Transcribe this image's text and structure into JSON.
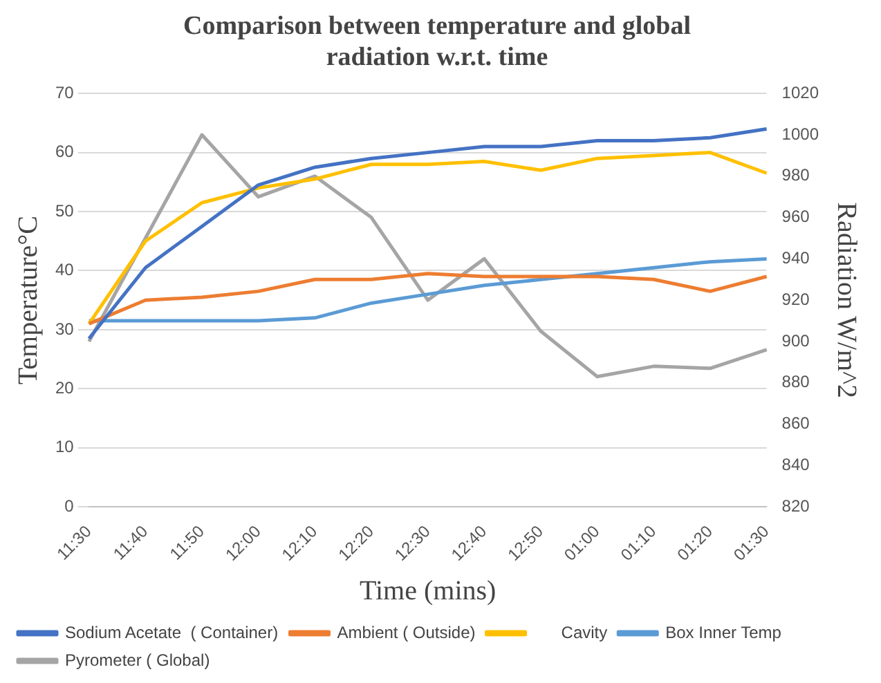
{
  "chart_data": {
    "type": "line",
    "title": "Comparison between temperature and global radiation w.r.t. time",
    "xlabel": "Time (mins)",
    "ylabel": "Temperature°C",
    "y2label": "Radiation W/m^2",
    "categories": [
      "11:30",
      "11:40",
      "11:50",
      "12:00",
      "12:10",
      "12:20",
      "12:30",
      "12:40",
      "12:50",
      "01:00",
      "01:10",
      "01:20",
      "01:30"
    ],
    "series": [
      {
        "name": "Sodium Acetate  ( Container)",
        "color": "#4472c4",
        "values": [
          28.5,
          40.5,
          47.5,
          54.5,
          57.5,
          59,
          60,
          61,
          61,
          62,
          62,
          62.5,
          64
        ]
      },
      {
        "name": "Ambient ( Outside)",
        "color": "#ed7d31",
        "values": [
          31,
          35,
          35.5,
          36.5,
          38.5,
          38.5,
          39.5,
          39,
          39,
          39,
          38.5,
          36.5,
          39
        ]
      },
      {
        "name": "      Cavity",
        "color": "#ffc000",
        "values": [
          31,
          45,
          51.5,
          54,
          55.5,
          58,
          58,
          58.5,
          57,
          59,
          59.5,
          60,
          56.5
        ]
      },
      {
        "name": "Box Inner Temp",
        "color": "#5b9bd5",
        "values": [
          31.5,
          31.5,
          31.5,
          31.5,
          32,
          34.5,
          36,
          37.5,
          38.5,
          39.5,
          40.5,
          41.5,
          42
        ]
      },
      {
        "name": "Pyrometer ( Global)",
        "color": "#a5a5a5",
        "axis": "y2",
        "values": [
          900,
          950,
          1000,
          970,
          980,
          960,
          920,
          940,
          905,
          883,
          888,
          887,
          896
        ]
      }
    ],
    "ylim": [
      0,
      70
    ],
    "yticks": [
      0,
      10,
      20,
      30,
      40,
      50,
      60,
      70
    ],
    "y2lim": [
      820,
      1020
    ],
    "y2ticks": [
      820,
      840,
      860,
      880,
      900,
      920,
      940,
      960,
      980,
      1000,
      1020
    ],
    "grid": "y",
    "legend": "bottom",
    "marker": "none",
    "line_style": "solid"
  }
}
